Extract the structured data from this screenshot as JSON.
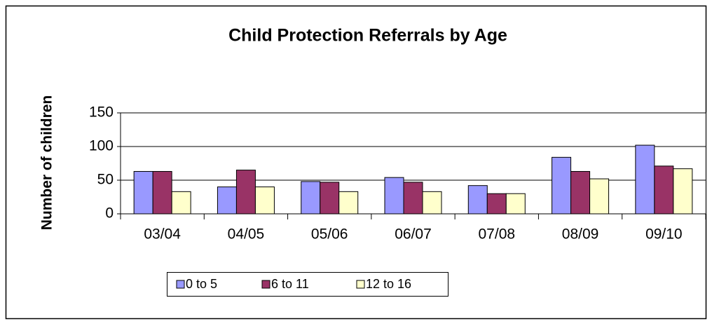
{
  "chart_data": {
    "type": "bar",
    "title": "Child Protection Referrals by Age",
    "y_label": "Number of children",
    "categories": [
      "03/04",
      "04/05",
      "05/06",
      "06/07",
      "07/08",
      "08/09",
      "09/10"
    ],
    "series": [
      {
        "name": "0 to 5",
        "color": "#9999ff",
        "values": [
          63,
          40,
          48,
          54,
          42,
          84,
          102
        ]
      },
      {
        "name": "6 to 11",
        "color": "#993366",
        "values": [
          63,
          65,
          47,
          47,
          30,
          63,
          71
        ]
      },
      {
        "name": "12 to 16",
        "color": "#ffffcc",
        "values": [
          33,
          40,
          33,
          33,
          30,
          52,
          67
        ]
      }
    ],
    "ylim": [
      0,
      150
    ],
    "yticks": [
      0,
      50,
      100,
      150
    ],
    "grid": true,
    "legend": "bottom"
  }
}
